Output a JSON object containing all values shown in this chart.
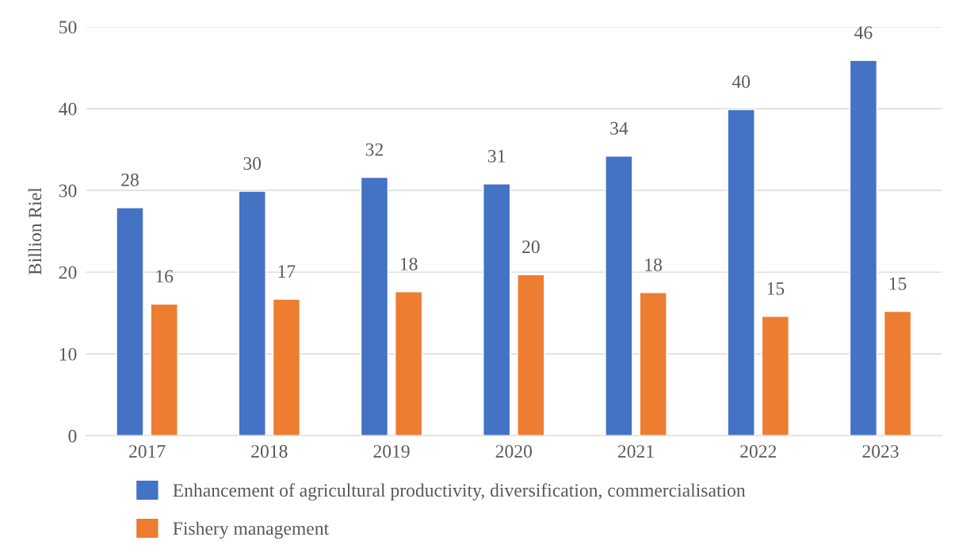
{
  "chart_data": {
    "type": "bar",
    "ylabel": "Billion Riel",
    "categories": [
      "2017",
      "2018",
      "2019",
      "2020",
      "2021",
      "2022",
      "2023"
    ],
    "series": [
      {
        "name": "Enhancement of agricultural productivity, diversification, commercialisation",
        "color": "#4472c4",
        "values": [
          27.9,
          29.9,
          31.6,
          30.8,
          34.2,
          39.9,
          45.9
        ],
        "value_labels": [
          "28",
          "30",
          "32",
          "31",
          "34",
          "40",
          "46"
        ]
      },
      {
        "name": "Fishery management",
        "color": "#ed7d31",
        "values": [
          16.1,
          16.7,
          17.6,
          19.7,
          17.5,
          14.6,
          15.2
        ],
        "value_labels": [
          "16",
          "17",
          "18",
          "20",
          "18",
          "15",
          "15"
        ]
      }
    ],
    "ylim": [
      0,
      50
    ],
    "yticks": [
      0,
      10,
      20,
      30,
      40,
      50
    ],
    "grid": "y",
    "legend": "bottom"
  }
}
